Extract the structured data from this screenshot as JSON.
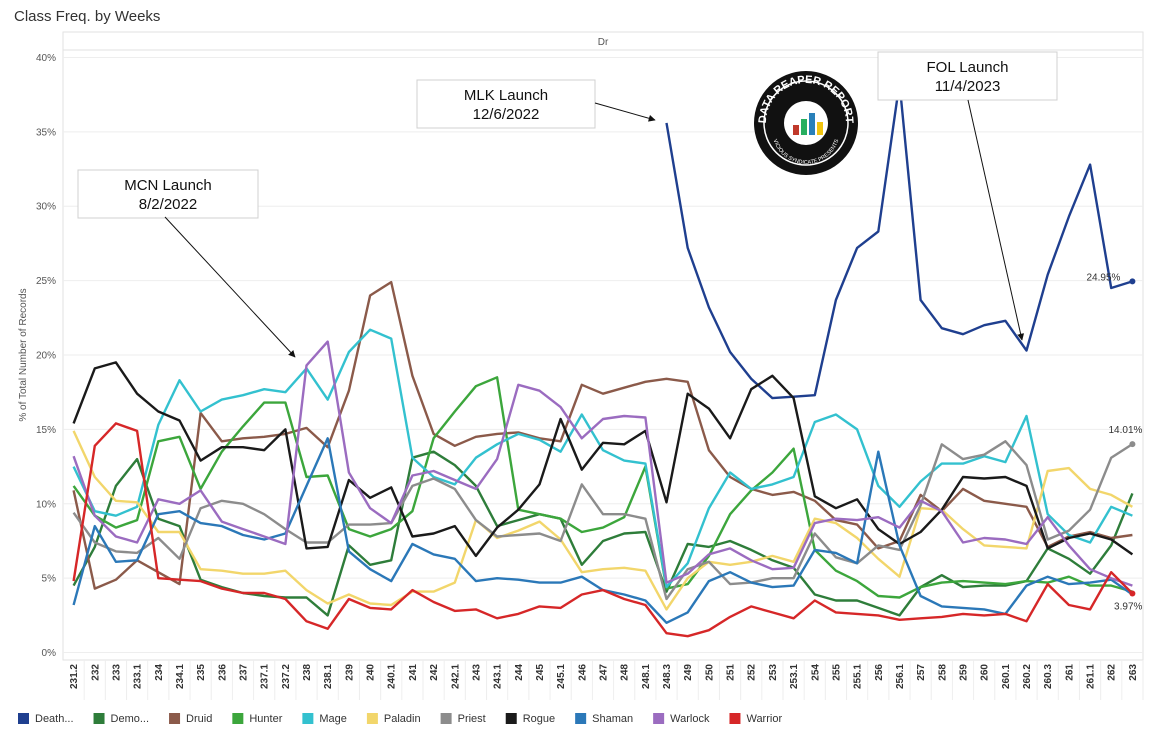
{
  "chart_data": {
    "type": "line",
    "title": "Class Freq. by Weeks",
    "header": "Dr",
    "y_label": "% of Total Number of Records",
    "categories": [
      "231.2",
      "232",
      "233",
      "233.1",
      "234",
      "234.1",
      "235",
      "236",
      "237",
      "237.1",
      "237.2",
      "238",
      "238.1",
      "239",
      "240",
      "240.1",
      "241",
      "242",
      "242.1",
      "243",
      "243.1",
      "244",
      "245",
      "245.1",
      "246",
      "247",
      "248",
      "248.1",
      "248.3",
      "249",
      "250",
      "251",
      "252",
      "253",
      "253.1",
      "254",
      "255",
      "255.1",
      "256",
      "256.1",
      "257",
      "258",
      "259",
      "260",
      "260.1",
      "260.2",
      "260.3",
      "261",
      "261.1",
      "262",
      "263"
    ],
    "ylim": [
      -0.5,
      40.5
    ],
    "yticks": [
      {
        "value": 0,
        "label": "0%"
      },
      {
        "value": 5,
        "label": "5%"
      },
      {
        "value": 10,
        "label": "10%"
      },
      {
        "value": 15,
        "label": "15%"
      },
      {
        "value": 20,
        "label": "20%"
      },
      {
        "value": 25,
        "label": "25%"
      },
      {
        "value": 30,
        "label": "30%"
      },
      {
        "value": 35,
        "label": "35%"
      },
      {
        "value": 40,
        "label": "40%"
      }
    ],
    "grid": true,
    "series": [
      {
        "name": "Death...",
        "color": "#1f3f8f",
        "values": [
          null,
          null,
          null,
          null,
          null,
          null,
          null,
          null,
          null,
          null,
          null,
          null,
          null,
          null,
          null,
          null,
          null,
          null,
          null,
          null,
          null,
          null,
          null,
          null,
          null,
          null,
          null,
          null,
          35.6,
          27.2,
          23.2,
          20.2,
          18.4,
          17.1,
          17.2,
          17.3,
          23.7,
          27.2,
          28.3,
          38.3,
          23.7,
          21.8,
          21.4,
          22.0,
          22.3,
          20.3,
          25.4,
          29.3,
          32.8,
          24.5,
          24.95
        ],
        "value_labels": [
          null,
          null,
          null,
          null,
          null,
          null,
          null,
          null,
          null,
          null,
          null,
          null,
          null,
          null,
          null,
          null,
          null,
          null,
          null,
          null,
          null,
          null,
          null,
          null,
          null,
          null,
          null,
          null,
          null,
          null,
          null,
          null,
          null,
          null,
          null,
          null,
          null,
          null,
          null,
          null,
          null,
          null,
          null,
          null,
          null,
          null,
          null,
          null,
          null,
          null,
          "24.95%"
        ]
      },
      {
        "name": "Demo...",
        "color": "#2e7d3a",
        "values": [
          4.5,
          7.1,
          11.2,
          13.0,
          9.0,
          8.5,
          4.9,
          4.4,
          4.0,
          3.8,
          3.7,
          3.7,
          2.5,
          7.2,
          5.9,
          6.2,
          13.1,
          13.5,
          12.6,
          11.2,
          8.5,
          8.9,
          9.3,
          9.0,
          5.9,
          7.5,
          8.0,
          8.1,
          4.1,
          7.3,
          7.1,
          7.5,
          6.9,
          6.2,
          5.7,
          3.9,
          3.5,
          3.5,
          3.0,
          2.5,
          4.4,
          5.2,
          4.4,
          4.5,
          4.5,
          4.8,
          7.0,
          6.3,
          5.3,
          7.2,
          10.7
        ]
      },
      {
        "name": "Druid",
        "color": "#8b5a4a",
        "values": [
          10.9,
          4.3,
          4.9,
          6.2,
          5.4,
          4.6,
          16.1,
          14.2,
          14.4,
          14.5,
          14.7,
          15.1,
          13.8,
          17.6,
          24.0,
          24.9,
          18.6,
          14.7,
          13.9,
          14.5,
          14.7,
          14.8,
          14.4,
          14.2,
          18.0,
          17.4,
          17.8,
          18.2,
          18.4,
          18.2,
          13.6,
          11.8,
          11.0,
          10.6,
          10.8,
          10.2,
          8.9,
          8.6,
          7.0,
          7.5,
          10.6,
          9.5,
          11.0,
          10.2,
          10.0,
          9.8,
          7.1,
          7.8,
          8.1,
          7.7,
          7.9
        ]
      },
      {
        "name": "Hunter",
        "color": "#3ca63c",
        "values": [
          11.2,
          9.2,
          8.4,
          8.9,
          14.2,
          14.5,
          11.0,
          13.5,
          15.2,
          16.8,
          16.8,
          11.8,
          11.9,
          8.3,
          7.8,
          8.3,
          9.5,
          14.4,
          16.2,
          17.9,
          18.5,
          9.6,
          9.3,
          9.0,
          8.1,
          8.4,
          9.1,
          12.5,
          4.3,
          4.6,
          6.5,
          9.3,
          10.9,
          12.1,
          13.7,
          6.9,
          5.5,
          4.8,
          3.8,
          3.7,
          4.4,
          4.7,
          4.8,
          4.7,
          4.6,
          4.8,
          4.7,
          5.1,
          4.5,
          4.5,
          4.1
        ]
      },
      {
        "name": "Mage",
        "color": "#33c1cf",
        "values": [
          12.5,
          9.5,
          9.2,
          9.8,
          15.3,
          18.3,
          16.2,
          17.0,
          17.3,
          17.7,
          17.5,
          19.1,
          17.0,
          20.2,
          21.7,
          21.1,
          13.1,
          11.8,
          11.3,
          13.1,
          14.0,
          14.7,
          14.3,
          13.5,
          16.0,
          13.6,
          12.9,
          12.7,
          4.4,
          6.0,
          9.7,
          12.1,
          11.0,
          11.3,
          11.8,
          15.5,
          16.0,
          15.0,
          11.2,
          9.8,
          11.5,
          12.7,
          12.7,
          13.2,
          12.8,
          15.9,
          9.3,
          7.9,
          7.4,
          9.8,
          9.2
        ]
      },
      {
        "name": "Paladin",
        "color": "#f2d66b",
        "values": [
          14.9,
          11.8,
          10.2,
          10.1,
          8.1,
          8.1,
          5.6,
          5.5,
          5.3,
          5.3,
          5.5,
          4.2,
          3.3,
          3.9,
          3.3,
          3.2,
          4.1,
          4.1,
          4.7,
          8.9,
          7.7,
          8.2,
          8.8,
          7.6,
          5.4,
          5.6,
          5.7,
          5.5,
          2.9,
          5.0,
          6.1,
          5.9,
          6.1,
          6.5,
          6.1,
          9.0,
          8.7,
          7.7,
          6.3,
          5.1,
          9.7,
          9.6,
          8.3,
          7.2,
          7.1,
          7.0,
          12.2,
          12.4,
          11.0,
          10.6,
          9.8
        ]
      },
      {
        "name": "Priest",
        "color": "#8c8c8c",
        "values": [
          9.4,
          7.4,
          6.8,
          6.7,
          7.7,
          6.3,
          9.7,
          10.2,
          10.0,
          9.3,
          8.3,
          7.4,
          7.4,
          8.6,
          8.6,
          8.7,
          11.2,
          11.7,
          11.0,
          8.9,
          7.8,
          7.9,
          8.0,
          7.5,
          11.3,
          9.3,
          9.3,
          9.0,
          3.6,
          5.6,
          6.1,
          4.6,
          4.7,
          5.0,
          5.0,
          8.0,
          6.4,
          6.0,
          7.2,
          6.9,
          9.9,
          14.0,
          13.0,
          13.3,
          14.2,
          12.6,
          7.6,
          8.2,
          9.6,
          13.1,
          14.01
        ],
        "value_labels": [
          null,
          null,
          null,
          null,
          null,
          null,
          null,
          null,
          null,
          null,
          null,
          null,
          null,
          null,
          null,
          null,
          null,
          null,
          null,
          null,
          null,
          null,
          null,
          null,
          null,
          null,
          null,
          null,
          null,
          null,
          null,
          null,
          null,
          null,
          null,
          null,
          null,
          null,
          null,
          null,
          null,
          null,
          null,
          null,
          null,
          null,
          null,
          null,
          null,
          null,
          "14.01%"
        ]
      },
      {
        "name": "Rogue",
        "color": "#1a1a1a",
        "values": [
          15.4,
          19.1,
          19.5,
          17.4,
          16.2,
          15.6,
          12.9,
          13.8,
          13.8,
          13.6,
          15.0,
          7.0,
          7.1,
          11.6,
          10.4,
          11.1,
          7.8,
          8.0,
          8.5,
          6.5,
          8.4,
          9.6,
          11.3,
          15.7,
          12.3,
          14.1,
          14.0,
          14.9,
          10.1,
          17.4,
          16.4,
          14.4,
          17.7,
          18.6,
          17.1,
          10.5,
          9.7,
          10.3,
          8.3,
          7.3,
          8.1,
          9.6,
          11.8,
          11.7,
          11.8,
          11.2,
          7.0,
          7.7,
          8.0,
          7.6,
          6.6
        ]
      },
      {
        "name": "Shaman",
        "color": "#2b78b8",
        "values": [
          3.2,
          8.5,
          6.1,
          6.2,
          9.3,
          9.5,
          8.7,
          8.5,
          7.9,
          7.6,
          8.0,
          11.2,
          14.4,
          6.8,
          5.6,
          4.8,
          7.3,
          6.6,
          6.3,
          4.8,
          5.0,
          4.9,
          4.7,
          4.7,
          5.1,
          4.2,
          3.9,
          3.5,
          2.0,
          2.7,
          4.8,
          5.4,
          4.7,
          4.4,
          4.5,
          6.9,
          6.7,
          6.0,
          13.5,
          7.2,
          3.8,
          3.1,
          3.0,
          2.9,
          2.6,
          4.5,
          5.1,
          4.6,
          4.7,
          4.9,
          3.9
        ]
      },
      {
        "name": "Warlock",
        "color": "#9b6cc0",
        "values": [
          13.2,
          9.2,
          7.8,
          7.4,
          10.3,
          10.0,
          10.9,
          8.8,
          8.3,
          7.8,
          7.3,
          19.3,
          20.9,
          12.1,
          9.7,
          8.7,
          11.9,
          12.2,
          11.6,
          11.0,
          13.0,
          18.0,
          17.6,
          16.5,
          14.4,
          15.7,
          15.9,
          15.8,
          4.7,
          5.3,
          6.6,
          7.0,
          6.2,
          5.6,
          5.7,
          8.7,
          9.0,
          8.9,
          9.1,
          8.4,
          10.2,
          9.5,
          7.4,
          7.7,
          7.6,
          7.3,
          9.1,
          7.2,
          5.6,
          5.0,
          4.5
        ]
      },
      {
        "name": "Warrior",
        "color": "#d62728",
        "values": [
          4.8,
          13.9,
          15.4,
          14.9,
          5.0,
          4.9,
          4.8,
          4.3,
          4.0,
          4.0,
          3.6,
          2.1,
          1.6,
          3.6,
          3.0,
          2.9,
          4.2,
          3.4,
          2.8,
          2.9,
          2.3,
          2.6,
          3.1,
          3.0,
          3.9,
          4.2,
          3.6,
          3.2,
          1.3,
          1.1,
          1.5,
          2.4,
          3.1,
          2.7,
          2.3,
          3.5,
          2.7,
          2.6,
          2.5,
          2.2,
          2.3,
          2.4,
          2.6,
          2.5,
          2.6,
          2.1,
          4.6,
          3.2,
          2.9,
          5.4,
          3.97
        ],
        "value_labels": [
          null,
          null,
          null,
          null,
          null,
          null,
          null,
          null,
          null,
          null,
          null,
          null,
          null,
          null,
          null,
          null,
          null,
          null,
          null,
          null,
          null,
          null,
          null,
          null,
          null,
          null,
          null,
          null,
          null,
          null,
          null,
          null,
          null,
          null,
          null,
          null,
          null,
          null,
          null,
          null,
          null,
          null,
          null,
          null,
          null,
          null,
          null,
          null,
          null,
          null,
          "3.97%"
        ]
      }
    ],
    "annotations": [
      {
        "label": "MCN Launch",
        "date": "8/2/2022"
      },
      {
        "label": "MLK Launch",
        "date": "12/6/2022"
      },
      {
        "label": "FOL Launch",
        "date": "11/4/2023"
      }
    ],
    "logo": {
      "title": "DATA REAPER REPORT",
      "subtitle": "VICIOUS SYNDICATE PRESENTS"
    }
  }
}
